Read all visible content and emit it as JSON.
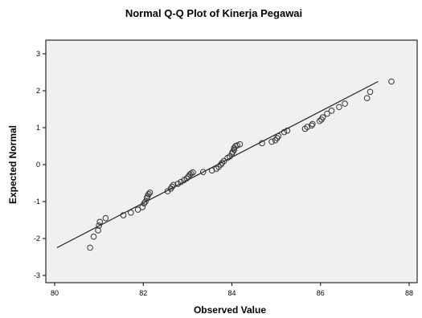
{
  "chart_data": {
    "type": "scatter",
    "title": "Normal Q-Q Plot of Kinerja Pegawai",
    "xlabel": "Observed Value",
    "ylabel": "Expected Normal",
    "xlim": [
      80,
      88
    ],
    "ylim": [
      -3,
      3
    ],
    "xticks": [
      "80",
      "82",
      "84",
      "86",
      "88"
    ],
    "yticks": [
      "-3",
      "-2",
      "-1",
      "0",
      "1",
      "2",
      "3"
    ],
    "grid": false,
    "legend": "none",
    "colors": {
      "plot_background": "#f0f0f0",
      "frame": "#000000",
      "points": "#333333",
      "line": "#222222"
    },
    "reference_line": {
      "x": [
        80.05,
        87.3
      ],
      "y": [
        -2.25,
        2.25
      ]
    },
    "points": [
      {
        "x": 80.8,
        "y": -2.25
      },
      {
        "x": 80.88,
        "y": -1.95
      },
      {
        "x": 80.98,
        "y": -1.78
      },
      {
        "x": 81.0,
        "y": -1.65
      },
      {
        "x": 81.02,
        "y": -1.55
      },
      {
        "x": 81.15,
        "y": -1.45
      },
      {
        "x": 81.55,
        "y": -1.37
      },
      {
        "x": 81.72,
        "y": -1.3
      },
      {
        "x": 81.88,
        "y": -1.22
      },
      {
        "x": 81.98,
        "y": -1.15
      },
      {
        "x": 82.02,
        "y": -1.05
      },
      {
        "x": 82.05,
        "y": -1.0
      },
      {
        "x": 82.08,
        "y": -0.9
      },
      {
        "x": 82.1,
        "y": -0.85
      },
      {
        "x": 82.12,
        "y": -0.8
      },
      {
        "x": 82.15,
        "y": -0.76
      },
      {
        "x": 82.55,
        "y": -0.72
      },
      {
        "x": 82.62,
        "y": -0.65
      },
      {
        "x": 82.65,
        "y": -0.6
      },
      {
        "x": 82.68,
        "y": -0.55
      },
      {
        "x": 82.78,
        "y": -0.52
      },
      {
        "x": 82.85,
        "y": -0.47
      },
      {
        "x": 82.92,
        "y": -0.42
      },
      {
        "x": 82.98,
        "y": -0.37
      },
      {
        "x": 83.02,
        "y": -0.32
      },
      {
        "x": 83.05,
        "y": -0.27
      },
      {
        "x": 83.08,
        "y": -0.24
      },
      {
        "x": 83.12,
        "y": -0.21
      },
      {
        "x": 83.35,
        "y": -0.2
      },
      {
        "x": 83.55,
        "y": -0.16
      },
      {
        "x": 83.65,
        "y": -0.11
      },
      {
        "x": 83.7,
        "y": -0.06
      },
      {
        "x": 83.75,
        "y": 0.0
      },
      {
        "x": 83.78,
        "y": 0.05
      },
      {
        "x": 83.82,
        "y": 0.1
      },
      {
        "x": 83.9,
        "y": 0.18
      },
      {
        "x": 83.95,
        "y": 0.22
      },
      {
        "x": 84.0,
        "y": 0.3
      },
      {
        "x": 84.02,
        "y": 0.35
      },
      {
        "x": 84.05,
        "y": 0.4
      },
      {
        "x": 84.05,
        "y": 0.45
      },
      {
        "x": 84.08,
        "y": 0.5
      },
      {
        "x": 84.12,
        "y": 0.52
      },
      {
        "x": 84.18,
        "y": 0.55
      },
      {
        "x": 84.68,
        "y": 0.58
      },
      {
        "x": 84.9,
        "y": 0.62
      },
      {
        "x": 84.98,
        "y": 0.66
      },
      {
        "x": 85.02,
        "y": 0.72
      },
      {
        "x": 85.05,
        "y": 0.77
      },
      {
        "x": 85.18,
        "y": 0.88
      },
      {
        "x": 85.25,
        "y": 0.92
      },
      {
        "x": 85.65,
        "y": 0.97
      },
      {
        "x": 85.7,
        "y": 1.02
      },
      {
        "x": 85.8,
        "y": 1.06
      },
      {
        "x": 85.82,
        "y": 1.1
      },
      {
        "x": 85.98,
        "y": 1.18
      },
      {
        "x": 86.02,
        "y": 1.22
      },
      {
        "x": 86.05,
        "y": 1.28
      },
      {
        "x": 86.15,
        "y": 1.38
      },
      {
        "x": 86.25,
        "y": 1.46
      },
      {
        "x": 86.42,
        "y": 1.56
      },
      {
        "x": 86.55,
        "y": 1.65
      },
      {
        "x": 87.05,
        "y": 1.8
      },
      {
        "x": 87.12,
        "y": 1.97
      },
      {
        "x": 87.6,
        "y": 2.25
      }
    ]
  }
}
